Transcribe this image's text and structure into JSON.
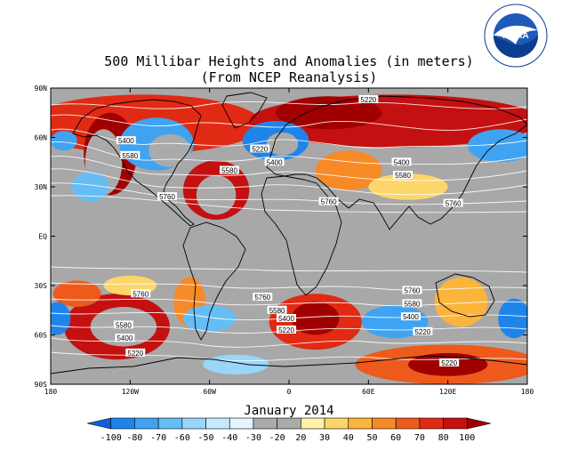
{
  "map": {
    "title_line1": "500 Millibar Heights and Anomalies (in meters)",
    "title_line2": "(From NCEP Reanalysis)",
    "colorbar_title": "January 2014",
    "logo_text": "NOAA",
    "logo_ring_text": "NATIONAL OCEANIC AND ATMOSPHERIC ADMINISTRATION · U.S. DEPARTMENT OF COMMERCE",
    "lon_labels": [
      "180",
      "120W",
      "60W",
      "0",
      "60E",
      "120E",
      "180"
    ],
    "lat_labels": [
      "90N",
      "60N",
      "30N",
      "EQ",
      "30S",
      "60S",
      "90S"
    ],
    "colorbar_ticks": [
      "-100",
      "-80",
      "-70",
      "-60",
      "-50",
      "-40",
      "-30",
      "-20",
      "20",
      "30",
      "40",
      "50",
      "60",
      "70",
      "80",
      "100"
    ],
    "colorbar_colors": [
      "#0a64d8",
      "#1f84ea",
      "#3fa3f2",
      "#66bdf6",
      "#98d6fa",
      "#c6eafd",
      "#e4f5fe",
      "#aaaaaa",
      "#aaaaaa",
      "#fff1a8",
      "#fdd66a",
      "#fbb43c",
      "#f68a26",
      "#ee5a1c",
      "#e02a14",
      "#c41010",
      "#a00000"
    ],
    "contour_labels": [
      {
        "text": "5220",
        "lon": 60,
        "lat": 83
      },
      {
        "text": "5400",
        "lon": -123,
        "lat": 58
      },
      {
        "text": "5580",
        "lon": -120,
        "lat": 49
      },
      {
        "text": "5220",
        "lon": -22,
        "lat": 53
      },
      {
        "text": "5400",
        "lon": -11,
        "lat": 45
      },
      {
        "text": "5580",
        "lon": -45,
        "lat": 40
      },
      {
        "text": "5760",
        "lon": -92,
        "lat": 24
      },
      {
        "text": "5400",
        "lon": 85,
        "lat": 45
      },
      {
        "text": "5580",
        "lon": 86,
        "lat": 37
      },
      {
        "text": "5760",
        "lon": 30,
        "lat": 21
      },
      {
        "text": "5760",
        "lon": 124,
        "lat": 20
      },
      {
        "text": "5760",
        "lon": -112,
        "lat": -35
      },
      {
        "text": "5580",
        "lon": -125,
        "lat": -54
      },
      {
        "text": "5400",
        "lon": -124,
        "lat": -62
      },
      {
        "text": "5220",
        "lon": -116,
        "lat": -71
      },
      {
        "text": "5760",
        "lon": -20,
        "lat": -37
      },
      {
        "text": "5580",
        "lon": -9,
        "lat": -45
      },
      {
        "text": "5400",
        "lon": -2,
        "lat": -50
      },
      {
        "text": "5220",
        "lon": -2,
        "lat": -57
      },
      {
        "text": "5760",
        "lon": 93,
        "lat": -33
      },
      {
        "text": "5580",
        "lon": 93,
        "lat": -41
      },
      {
        "text": "5400",
        "lon": 92,
        "lat": -49
      },
      {
        "text": "5220",
        "lon": 101,
        "lat": -58
      },
      {
        "text": "5220",
        "lon": 121,
        "lat": -77
      }
    ],
    "anomaly_blobs": [
      {
        "lon": -110,
        "lat": 68,
        "rlon": 90,
        "rlat": 18,
        "level": 6
      },
      {
        "lon": 80,
        "lat": 70,
        "rlon": 110,
        "rlat": 16,
        "level": 7
      },
      {
        "lon": 30,
        "lat": 75,
        "rlon": 40,
        "rlat": 10,
        "level": 8
      },
      {
        "lon": -135,
        "lat": 50,
        "rlon": 20,
        "rlat": 25,
        "level": 8
      },
      {
        "lon": -140,
        "lat": 45,
        "rlon": 14,
        "rlat": 20,
        "level": 9
      },
      {
        "lon": -55,
        "lat": 28,
        "rlon": 25,
        "rlat": 18,
        "level": 7
      },
      {
        "lon": -55,
        "lat": 25,
        "rlon": 15,
        "rlat": 12,
        "level": 9
      },
      {
        "lon": 45,
        "lat": 40,
        "rlon": 25,
        "rlat": 12,
        "level": 4
      },
      {
        "lon": 90,
        "lat": 30,
        "rlon": 30,
        "rlat": 8,
        "level": 2
      },
      {
        "lon": -130,
        "lat": -55,
        "rlon": 40,
        "rlat": 20,
        "level": 7
      },
      {
        "lon": -125,
        "lat": -55,
        "rlon": 25,
        "rlat": 12,
        "level": 9
      },
      {
        "lon": -160,
        "lat": -35,
        "rlon": 18,
        "rlat": 8,
        "level": 5
      },
      {
        "lon": -120,
        "lat": -30,
        "rlon": 20,
        "rlat": 6,
        "level": 2
      },
      {
        "lon": 20,
        "lat": -52,
        "rlon": 35,
        "rlat": 17,
        "level": 6
      },
      {
        "lon": 20,
        "lat": -50,
        "rlon": 18,
        "rlat": 10,
        "level": 8
      },
      {
        "lon": 130,
        "lat": -40,
        "rlon": 20,
        "rlat": 15,
        "level": 3
      },
      {
        "lon": 120,
        "lat": -78,
        "rlon": 70,
        "rlat": 12,
        "level": 5
      },
      {
        "lon": 120,
        "lat": -78,
        "rlon": 30,
        "rlat": 7,
        "level": 8
      },
      {
        "lon": -75,
        "lat": -40,
        "rlon": 12,
        "rlat": 15,
        "level": 4
      },
      {
        "lon": -100,
        "lat": 56,
        "rlon": 28,
        "rlat": 16,
        "level": -5
      },
      {
        "lon": -90,
        "lat": 52,
        "rlon": 16,
        "rlat": 10,
        "level": -8
      },
      {
        "lon": -10,
        "lat": 58,
        "rlon": 25,
        "rlat": 12,
        "level": -6
      },
      {
        "lon": -5,
        "lat": 56,
        "rlon": 12,
        "rlat": 7,
        "level": -8
      },
      {
        "lon": 160,
        "lat": 55,
        "rlon": 25,
        "rlat": 10,
        "level": -5
      },
      {
        "lon": -150,
        "lat": 30,
        "rlon": 14,
        "rlat": 9,
        "level": -4
      },
      {
        "lon": -170,
        "lat": 58,
        "rlon": 10,
        "rlat": 6,
        "level": -5
      },
      {
        "lon": -60,
        "lat": -50,
        "rlon": 20,
        "rlat": 8,
        "level": -4
      },
      {
        "lon": -40,
        "lat": -78,
        "rlon": 25,
        "rlat": 6,
        "level": -3
      },
      {
        "lon": 80,
        "lat": -52,
        "rlon": 25,
        "rlat": 10,
        "level": -5
      },
      {
        "lon": 170,
        "lat": -50,
        "rlon": 12,
        "rlat": 12,
        "level": -6
      },
      {
        "lon": -175,
        "lat": -50,
        "rlon": 10,
        "rlat": 10,
        "level": -6
      }
    ]
  }
}
